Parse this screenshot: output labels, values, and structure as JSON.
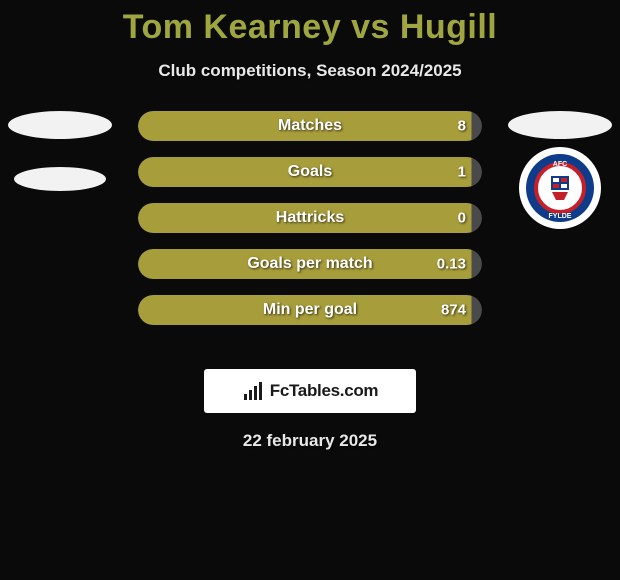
{
  "title": "Tom Kearney vs Hugill",
  "subtitle": "Club competitions, Season 2024/2025",
  "date": "22 february 2025",
  "colors": {
    "title": "#9fa640",
    "bar_fill": "#a89d3b",
    "bar_track_right": "#4a4a4a",
    "background": "#0a0a0a",
    "text": "#e8e8e8"
  },
  "left": {
    "has_player_oval": true,
    "has_club_oval": true
  },
  "right": {
    "has_player_oval": true,
    "club_badge": {
      "name": "AFC Fylde",
      "outer_ring": "#0e3b8a",
      "inner_circle_border": "#c5202a",
      "text_color": "#ffffff"
    }
  },
  "stats": [
    {
      "label": "Matches",
      "right_value": "8",
      "fill_ratio": 0.97
    },
    {
      "label": "Goals",
      "right_value": "1",
      "fill_ratio": 0.97
    },
    {
      "label": "Hattricks",
      "right_value": "0",
      "fill_ratio": 0.97
    },
    {
      "label": "Goals per match",
      "right_value": "0.13",
      "fill_ratio": 0.97
    },
    {
      "label": "Min per goal",
      "right_value": "874",
      "fill_ratio": 0.97
    }
  ],
  "footer_brand": "FcTables.com"
}
